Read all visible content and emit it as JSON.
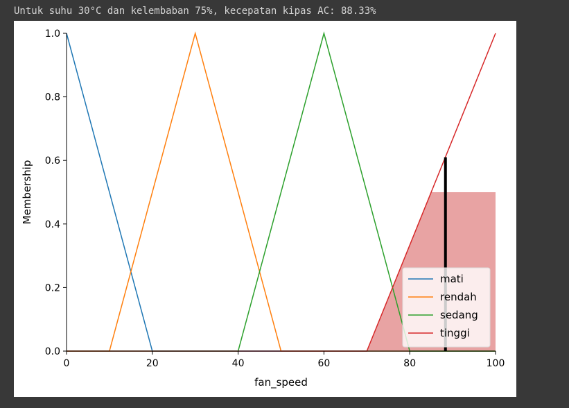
{
  "output": {
    "text": "Untuk suhu 30°C dan kelembaban 75%, kecepatan kipas AC: 88.33%"
  },
  "colors": {
    "page_bg": "#383838",
    "mati": "#1f77b4",
    "rendah": "#ff7f0e",
    "sedang": "#2ca02c",
    "tinggi": "#d62728",
    "fill": "#e8a3a3",
    "marker": "#000000"
  },
  "chart_data": {
    "type": "line",
    "xlabel": "fan_speed",
    "ylabel": "Membership",
    "xlim": [
      0,
      100
    ],
    "ylim": [
      0,
      1.0
    ],
    "x_ticks": [
      "0",
      "20",
      "40",
      "60",
      "80",
      "100"
    ],
    "y_ticks": [
      "0.0",
      "0.2",
      "0.4",
      "0.6",
      "0.8",
      "1.0"
    ],
    "series": [
      {
        "name": "mati",
        "key": "mati",
        "points": [
          [
            0,
            1
          ],
          [
            20,
            0
          ],
          [
            100,
            0
          ]
        ]
      },
      {
        "name": "rendah",
        "key": "rendah",
        "points": [
          [
            0,
            0
          ],
          [
            10,
            0
          ],
          [
            30,
            1
          ],
          [
            50,
            0
          ],
          [
            100,
            0
          ]
        ]
      },
      {
        "name": "sedang",
        "key": "sedang",
        "points": [
          [
            0,
            0
          ],
          [
            40,
            0
          ],
          [
            60,
            1
          ],
          [
            80,
            0
          ],
          [
            100,
            0
          ]
        ]
      },
      {
        "name": "tinggi",
        "key": "tinggi",
        "points": [
          [
            0,
            0
          ],
          [
            70,
            0
          ],
          [
            100,
            1
          ]
        ]
      }
    ],
    "aggregated_fill": {
      "points": [
        [
          70,
          0
        ],
        [
          85,
          0.5
        ],
        [
          100,
          0.5
        ],
        [
          100,
          0
        ]
      ]
    },
    "centroid": {
      "x": 88.33,
      "y": 0.61
    },
    "legend_position": "lower right"
  }
}
